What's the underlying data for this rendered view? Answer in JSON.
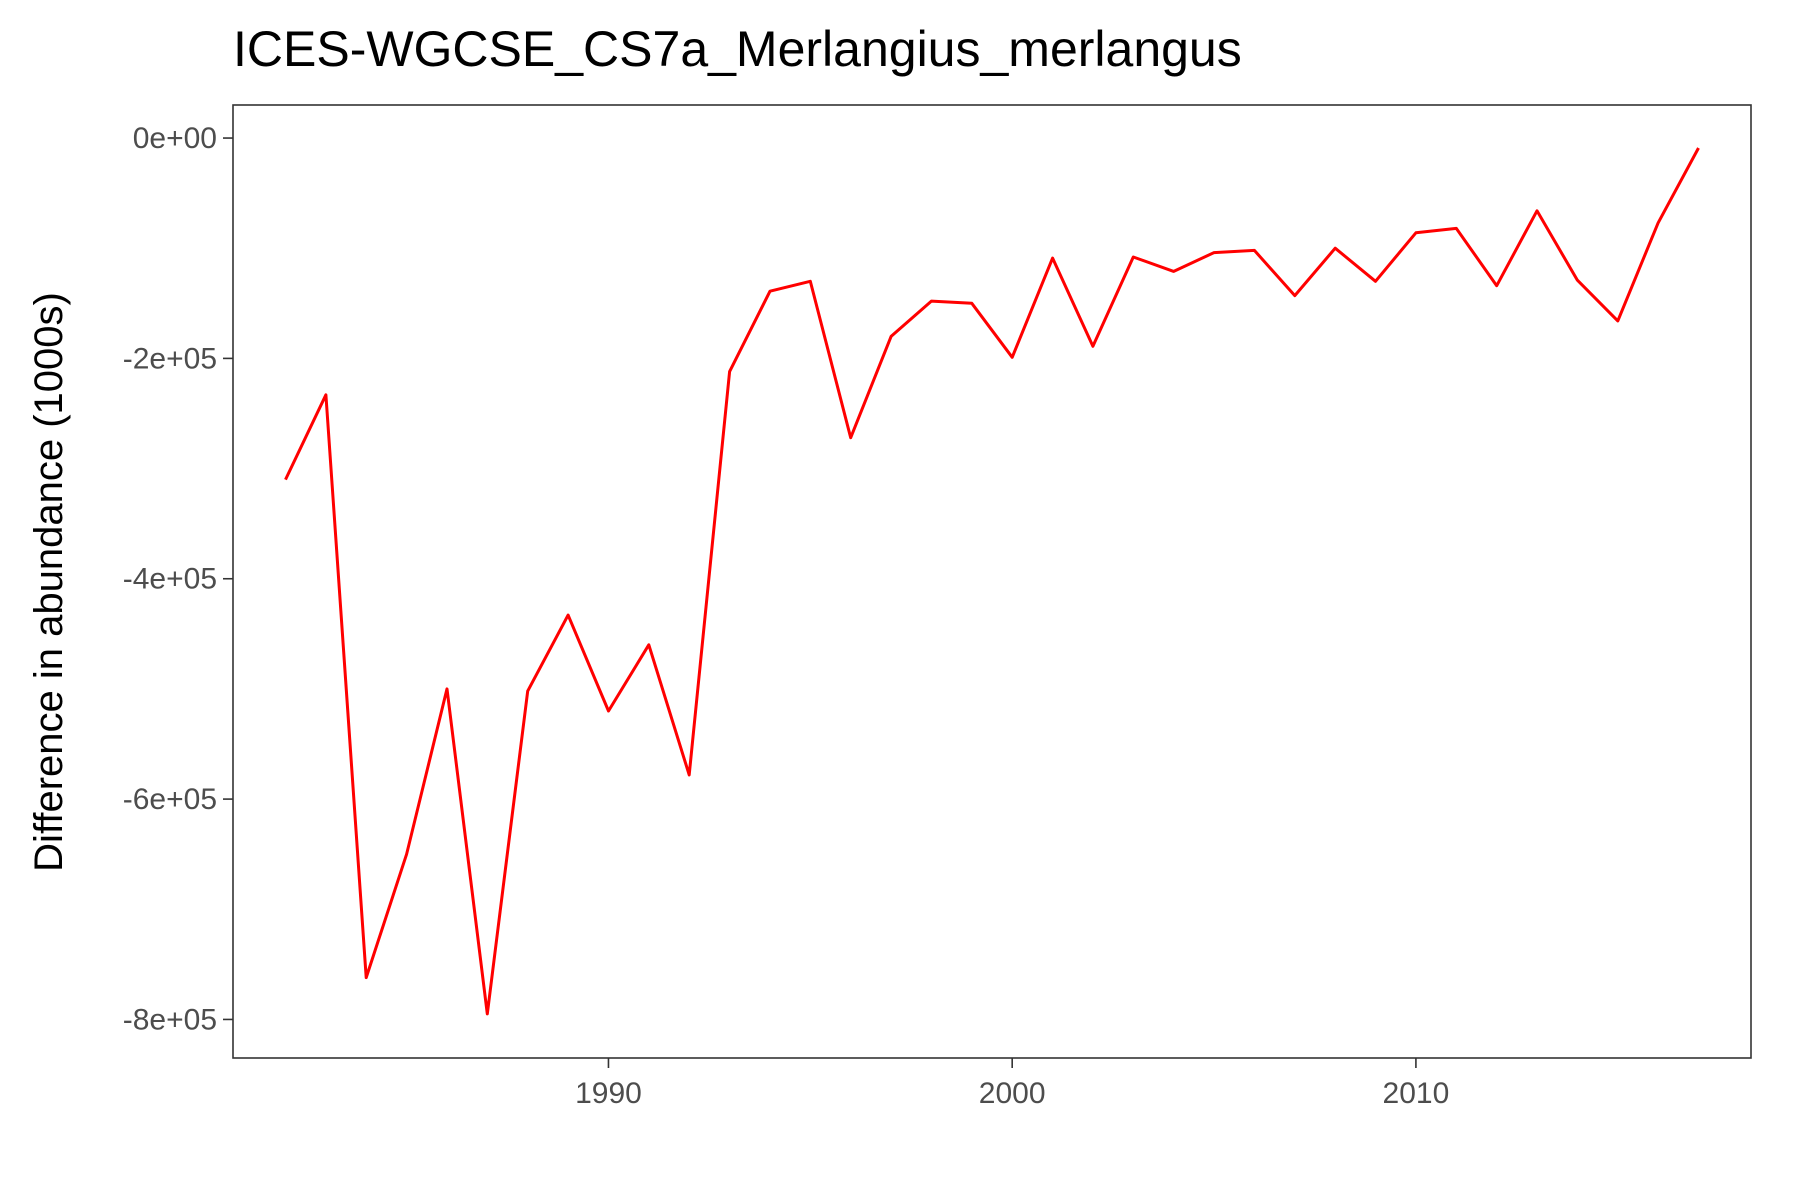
{
  "chart_data": {
    "type": "line",
    "title": "ICES-WGCSE_CS7a_Merlangius_merlangus",
    "xlabel": "",
    "ylabel": "Difference in abundance (1000s)",
    "xlim": [
      1980.7,
      2018.3
    ],
    "ylim": [
      -835000,
      30000
    ],
    "x_ticks": [
      1990,
      2000,
      2010
    ],
    "x_tick_labels": [
      "1990",
      "2000",
      "2010"
    ],
    "y_ticks": [
      0,
      -200000,
      -400000,
      -600000,
      -800000
    ],
    "y_tick_labels": [
      "0e+00",
      "-2e+05",
      "-4e+05",
      "-6e+05",
      "-8e+05"
    ],
    "grid": false,
    "series": [
      {
        "color": "#ff0000",
        "x": [
          1982,
          1983,
          1984,
          1985,
          1986,
          1987,
          1988,
          1989,
          1990,
          1991,
          1992,
          1993,
          1994,
          1995,
          1996,
          1997,
          1998,
          1999,
          2000,
          2001,
          2002,
          2003,
          2004,
          2005,
          2006,
          2007,
          2008,
          2009,
          2010,
          2011,
          2012,
          2013,
          2014,
          2015,
          2016,
          2017
        ],
        "y": [
          -310000,
          -233000,
          -762000,
          -650000,
          -500000,
          -795000,
          -502000,
          -433000,
          -520000,
          -460000,
          -578000,
          -212000,
          -139000,
          -130000,
          -272000,
          -180000,
          -148000,
          -150000,
          -199000,
          -109000,
          -189000,
          -108000,
          -121000,
          -104000,
          -102000,
          -143000,
          -100000,
          -130000,
          -86000,
          -82000,
          -134000,
          -66000,
          -129000,
          -166000,
          -77000,
          -9000
        ]
      }
    ]
  }
}
